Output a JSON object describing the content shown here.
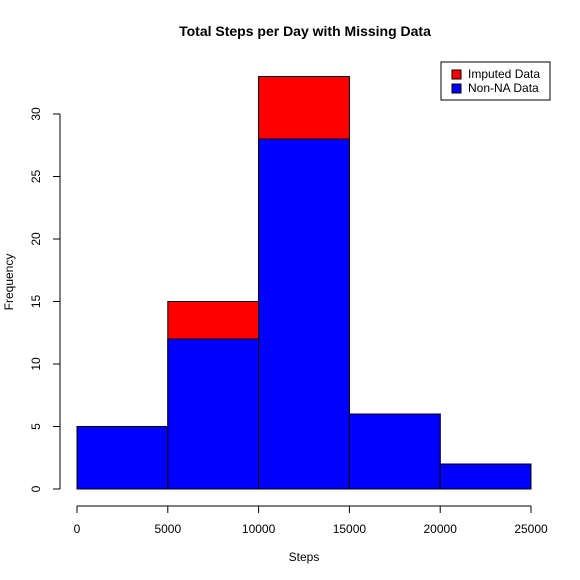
{
  "chart_data": {
    "type": "bar",
    "title": "Total Steps per Day with Missing Data",
    "xlabel": "Steps",
    "ylabel": "Frequency",
    "xlim": [
      0,
      25000
    ],
    "ylim": [
      0,
      33
    ],
    "x_ticks": [
      "0",
      "5000",
      "10000",
      "15000",
      "20000",
      "25000"
    ],
    "y_ticks": [
      "0",
      "5",
      "10",
      "15",
      "20",
      "25",
      "30"
    ],
    "bins": [
      {
        "start": 0,
        "end": 5000
      },
      {
        "start": 5000,
        "end": 10000
      },
      {
        "start": 10000,
        "end": 15000
      },
      {
        "start": 15000,
        "end": 20000
      },
      {
        "start": 20000,
        "end": 25000
      }
    ],
    "series": [
      {
        "name": "Imputed Data",
        "color": "#ff0000",
        "values": [
          5,
          15,
          33,
          6,
          2
        ]
      },
      {
        "name": "Non-NA Data",
        "color": "#0000ff",
        "values": [
          5,
          12,
          28,
          6,
          2
        ]
      }
    ],
    "legend": {
      "placement": "top-right",
      "entries": [
        "Imputed Data",
        "Non-NA Data"
      ]
    },
    "grid": false
  }
}
